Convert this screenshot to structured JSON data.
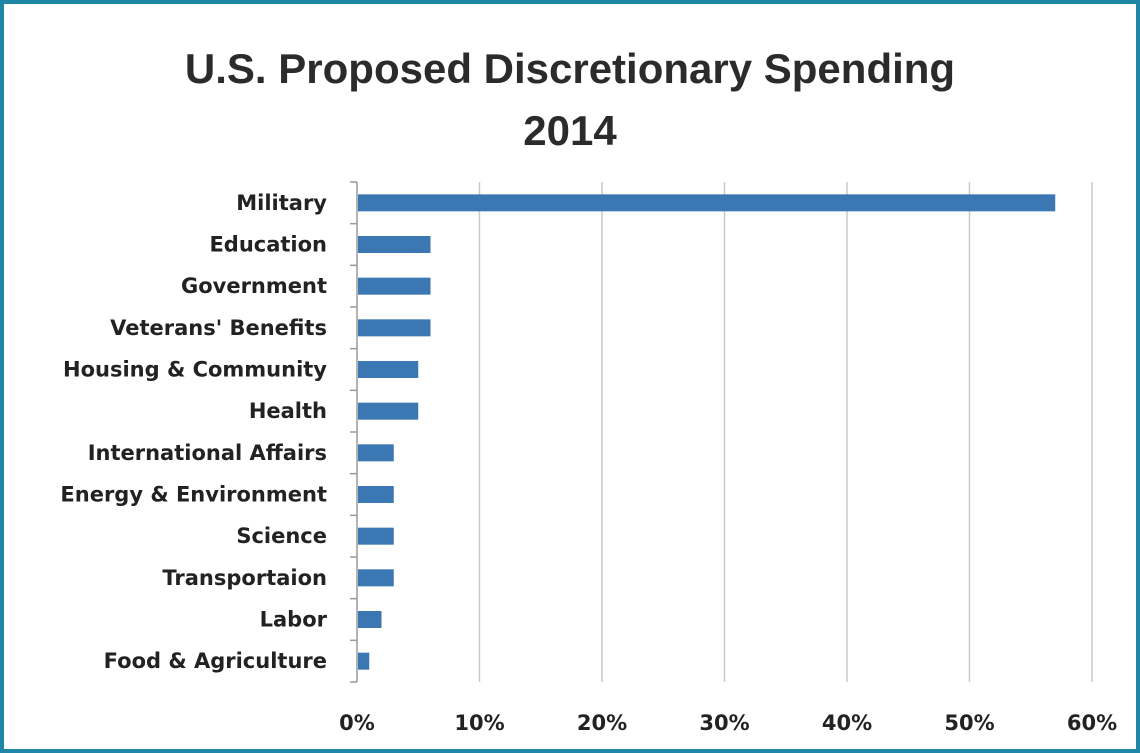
{
  "chart_data": {
    "type": "bar",
    "orientation": "horizontal",
    "title": "U.S. Proposed Discretionary Spending",
    "subtitle": "2014",
    "categories": [
      "Military",
      "Education",
      "Government",
      "Veterans' Benefits",
      "Housing & Community",
      "Health",
      "International Affairs",
      "Energy & Environment",
      "Science",
      "Transportaion",
      "Labor",
      "Food & Agriculture"
    ],
    "values": [
      0.57,
      0.06,
      0.06,
      0.06,
      0.05,
      0.05,
      0.03,
      0.03,
      0.03,
      0.03,
      0.02,
      0.01
    ],
    "xlim": [
      0,
      0.6
    ],
    "xticks": [
      0,
      0.1,
      0.2,
      0.3,
      0.4,
      0.5,
      0.6
    ],
    "xtick_labels": [
      "0%",
      "10%",
      "20%",
      "30%",
      "40%",
      "50%",
      "60%"
    ],
    "xlabel": "",
    "ylabel": "",
    "grid": "vertical",
    "legend": "none",
    "bar_color": "#3b77b3",
    "border_color": "#1f86a8"
  }
}
